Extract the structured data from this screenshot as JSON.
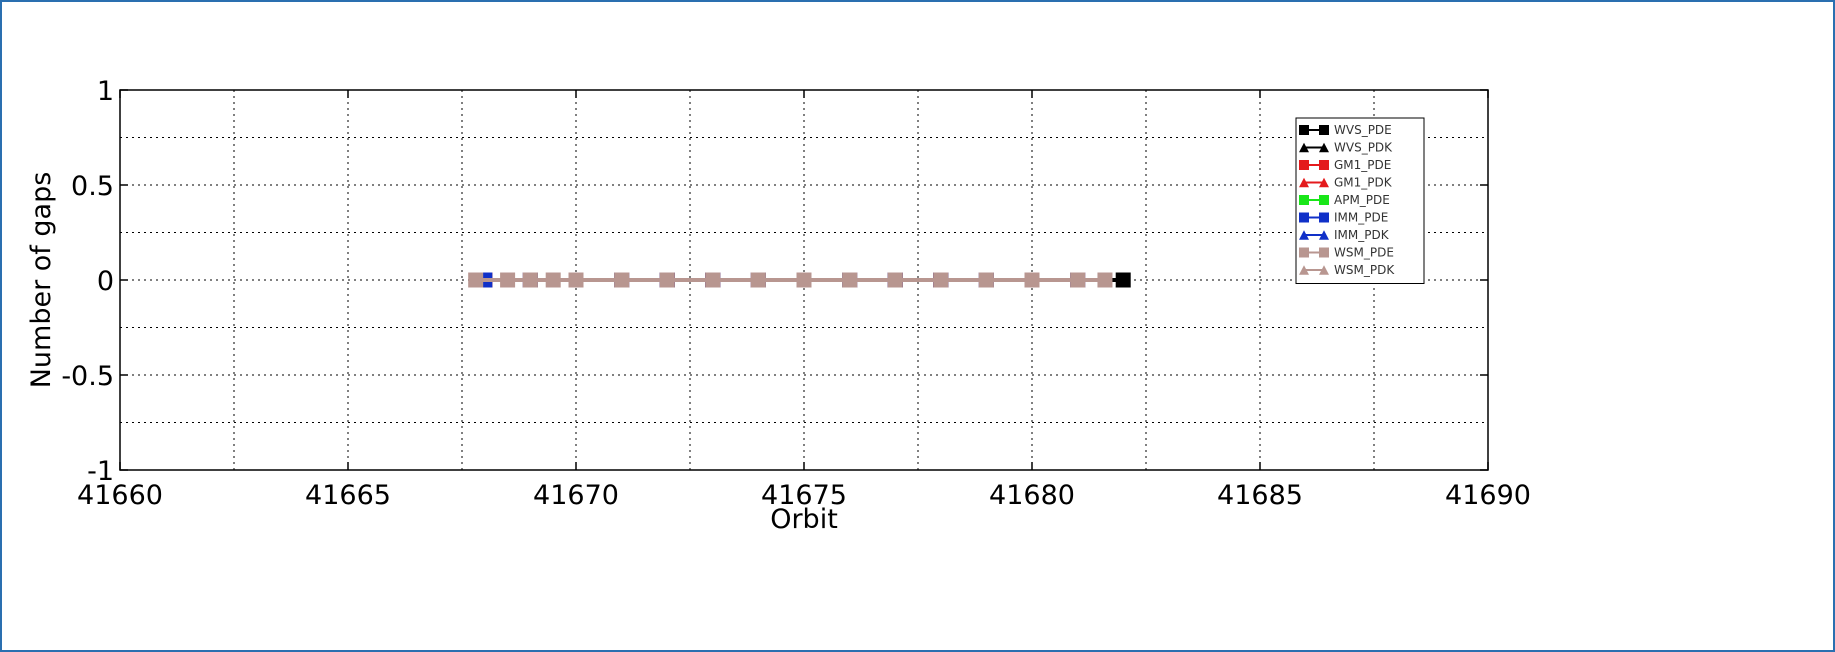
{
  "chart_data": {
    "type": "line",
    "title": "",
    "xlabel": "Orbit",
    "ylabel": "Number of gaps",
    "xlim": [
      41660,
      41690
    ],
    "ylim": [
      -1,
      1
    ],
    "xticks": [
      41660,
      41665,
      41670,
      41675,
      41680,
      41685,
      41690
    ],
    "yticks": [
      -1,
      -0.5,
      0,
      0.5,
      1
    ],
    "xtick_labels": [
      "41660",
      "41665",
      "41670",
      "41675",
      "41680",
      "41685",
      "41690"
    ],
    "ytick_labels": [
      "-1",
      "-0.5",
      "0",
      "0.5",
      "1"
    ],
    "grid": true,
    "legend_position": "top-right",
    "series": [
      {
        "name": "WVS_PDE",
        "color": "#000000",
        "marker": "square",
        "x": [
          41668,
          41669,
          41670,
          41671,
          41672,
          41673,
          41674,
          41675,
          41676,
          41677,
          41678,
          41679,
          41680,
          41681,
          41682
        ],
        "y": [
          0,
          0,
          0,
          0,
          0,
          0,
          0,
          0,
          0,
          0,
          0,
          0,
          0,
          0,
          0
        ]
      },
      {
        "name": "WVS_PDK",
        "color": "#000000",
        "marker": "triangle",
        "x": [
          41668,
          41669,
          41670,
          41671,
          41672,
          41673,
          41674,
          41675,
          41676,
          41677,
          41678,
          41679,
          41680,
          41681,
          41682
        ],
        "y": [
          0,
          0,
          0,
          0,
          0,
          0,
          0,
          0,
          0,
          0,
          0,
          0,
          0,
          0,
          0
        ]
      },
      {
        "name": "GM1_PDE",
        "color": "#e41a1c",
        "marker": "square",
        "x": [
          41668,
          41669,
          41670,
          41671,
          41672,
          41673,
          41674,
          41675,
          41676,
          41677,
          41678,
          41679,
          41680,
          41681
        ],
        "y": [
          0,
          0,
          0,
          0,
          0,
          0,
          0,
          0,
          0,
          0,
          0,
          0,
          0,
          0
        ]
      },
      {
        "name": "GM1_PDK",
        "color": "#e41a1c",
        "marker": "triangle",
        "x": [
          41672,
          41673,
          41674,
          41675,
          41676,
          41677,
          41678
        ],
        "y": [
          0,
          0,
          0,
          0,
          0,
          0,
          0
        ]
      },
      {
        "name": "APM_PDE",
        "color": "#19e619",
        "marker": "square",
        "x": [
          41675
        ],
        "y": [
          0
        ]
      },
      {
        "name": "IMM_PDE",
        "color": "#1030c8",
        "marker": "square",
        "x": [
          41668,
          41669,
          41670,
          41671,
          41672,
          41673,
          41674,
          41675,
          41676,
          41677,
          41678,
          41679,
          41680,
          41681
        ],
        "y": [
          0,
          0,
          0,
          0,
          0,
          0,
          0,
          0,
          0,
          0,
          0,
          0,
          0,
          0
        ]
      },
      {
        "name": "IMM_PDK",
        "color": "#1030c8",
        "marker": "triangle",
        "x": [
          41671,
          41672,
          41673,
          41674,
          41675,
          41676,
          41677,
          41678,
          41679,
          41680,
          41681
        ],
        "y": [
          0,
          0,
          0,
          0,
          0,
          0,
          0,
          0,
          0,
          0,
          0
        ]
      },
      {
        "name": "WSM_PDE",
        "color": "#b89690",
        "marker": "square",
        "x": [
          41667.8,
          41668.5,
          41669,
          41669.5,
          41670,
          41671,
          41672,
          41673,
          41674,
          41675,
          41676,
          41677,
          41678,
          41679,
          41680,
          41681,
          41681.6
        ],
        "y": [
          0,
          0,
          0,
          0,
          0,
          0,
          0,
          0,
          0,
          0,
          0,
          0,
          0,
          0,
          0,
          0,
          0
        ]
      },
      {
        "name": "WSM_PDK",
        "color": "#b89690",
        "marker": "triangle",
        "x": [
          41672,
          41673,
          41674,
          41675,
          41676,
          41677,
          41678,
          41679,
          41680,
          41681
        ],
        "y": [
          0,
          0,
          0,
          0,
          0,
          0,
          0,
          0,
          0,
          0
        ]
      }
    ]
  }
}
